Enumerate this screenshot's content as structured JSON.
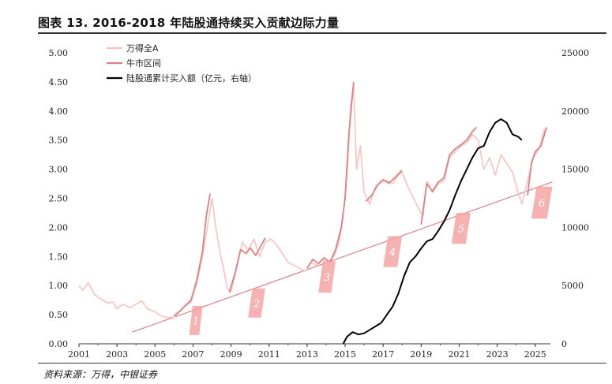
{
  "title": "图表 13. 2016-2018 年陆股通持续买入贡献边际力量",
  "source": "资料来源：万得，中银证券",
  "chart_data": {
    "type": "line",
    "x_range": [
      2001.0,
      2025.8
    ],
    "x_ticks": [
      "2001",
      "2003",
      "2005",
      "2007",
      "2009",
      "2011",
      "2013",
      "2015",
      "2017",
      "2019",
      "2021",
      "2023",
      "2025"
    ],
    "y_left": {
      "range": [
        0,
        5
      ],
      "ticks": [
        "0.00",
        "0.50",
        "1.00",
        "1.50",
        "2.00",
        "2.50",
        "3.00",
        "3.50",
        "4.00",
        "4.50",
        "5.00"
      ]
    },
    "y_right": {
      "range": [
        0,
        25000
      ],
      "ticks": [
        "0",
        "5000",
        "10000",
        "15000",
        "20000",
        "25000"
      ],
      "label": ""
    },
    "legend": [
      {
        "name": "万得全A",
        "color": "#f6c3bd"
      },
      {
        "name": "牛市区间",
        "color": "#e07f84"
      },
      {
        "name": "陆股通累计买入额（亿元，右轴）",
        "color": "#000000"
      }
    ],
    "series": [
      {
        "name": "万得全A",
        "color": "#f6c3bd",
        "axis": "left",
        "points": [
          [
            2001.0,
            1.0
          ],
          [
            2001.2,
            0.92
          ],
          [
            2001.5,
            1.05
          ],
          [
            2001.8,
            0.85
          ],
          [
            2002.1,
            0.78
          ],
          [
            2002.5,
            0.7
          ],
          [
            2002.8,
            0.72
          ],
          [
            2003.0,
            0.6
          ],
          [
            2003.3,
            0.68
          ],
          [
            2003.7,
            0.62
          ],
          [
            2004.0,
            0.68
          ],
          [
            2004.3,
            0.74
          ],
          [
            2004.6,
            0.6
          ],
          [
            2005.0,
            0.55
          ],
          [
            2005.3,
            0.48
          ],
          [
            2005.7,
            0.45
          ],
          [
            2006.0,
            0.46
          ],
          [
            2006.3,
            0.55
          ],
          [
            2006.6,
            0.65
          ],
          [
            2006.9,
            0.72
          ],
          [
            2007.2,
            1.05
          ],
          [
            2007.5,
            1.5
          ],
          [
            2007.8,
            2.1
          ],
          [
            2008.0,
            2.5
          ],
          [
            2008.2,
            2.0
          ],
          [
            2008.4,
            1.6
          ],
          [
            2008.6,
            1.3
          ],
          [
            2008.8,
            0.95
          ],
          [
            2009.0,
            0.9
          ],
          [
            2009.3,
            1.3
          ],
          [
            2009.6,
            1.75
          ],
          [
            2009.9,
            1.6
          ],
          [
            2010.2,
            1.8
          ],
          [
            2010.5,
            1.5
          ],
          [
            2010.8,
            1.75
          ],
          [
            2011.1,
            1.8
          ],
          [
            2011.4,
            1.7
          ],
          [
            2011.7,
            1.55
          ],
          [
            2012.0,
            1.4
          ],
          [
            2012.3,
            1.35
          ],
          [
            2012.6,
            1.3
          ],
          [
            2012.9,
            1.25
          ],
          [
            2013.2,
            1.4
          ],
          [
            2013.5,
            1.35
          ],
          [
            2013.8,
            1.45
          ],
          [
            2014.1,
            1.4
          ],
          [
            2014.4,
            1.5
          ],
          [
            2014.7,
            1.75
          ],
          [
            2014.9,
            2.2
          ],
          [
            2015.1,
            2.9
          ],
          [
            2015.3,
            4.1
          ],
          [
            2015.45,
            4.45
          ],
          [
            2015.6,
            3.0
          ],
          [
            2015.8,
            3.4
          ],
          [
            2016.0,
            2.6
          ],
          [
            2016.3,
            2.4
          ],
          [
            2016.6,
            2.7
          ],
          [
            2016.9,
            2.8
          ],
          [
            2017.2,
            2.8
          ],
          [
            2017.5,
            2.75
          ],
          [
            2017.8,
            2.9
          ],
          [
            2018.0,
            2.95
          ],
          [
            2018.3,
            2.7
          ],
          [
            2018.6,
            2.5
          ],
          [
            2018.9,
            2.3
          ],
          [
            2019.1,
            2.2
          ],
          [
            2019.3,
            2.8
          ],
          [
            2019.6,
            2.6
          ],
          [
            2019.9,
            2.75
          ],
          [
            2020.2,
            2.8
          ],
          [
            2020.5,
            3.2
          ],
          [
            2020.8,
            3.3
          ],
          [
            2021.1,
            3.4
          ],
          [
            2021.4,
            3.45
          ],
          [
            2021.7,
            3.6
          ],
          [
            2022.0,
            3.5
          ],
          [
            2022.3,
            3.0
          ],
          [
            2022.6,
            3.2
          ],
          [
            2022.9,
            2.9
          ],
          [
            2023.2,
            3.25
          ],
          [
            2023.5,
            3.1
          ],
          [
            2023.8,
            2.95
          ],
          [
            2024.1,
            2.6
          ],
          [
            2024.3,
            2.4
          ],
          [
            2024.6,
            2.8
          ],
          [
            2024.9,
            3.2
          ],
          [
            2025.2,
            3.35
          ],
          [
            2025.5,
            3.7
          ]
        ]
      },
      {
        "name": "牛市区间",
        "color": "#e07f84",
        "axis": "left",
        "segments": [
          [
            [
              2006.0,
              0.48
            ],
            [
              2006.3,
              0.56
            ],
            [
              2006.6,
              0.66
            ],
            [
              2006.9,
              0.75
            ],
            [
              2007.2,
              1.1
            ],
            [
              2007.5,
              1.6
            ],
            [
              2007.7,
              2.2
            ],
            [
              2007.9,
              2.58
            ]
          ],
          [
            [
              2008.9,
              0.88
            ],
            [
              2009.2,
              1.2
            ],
            [
              2009.5,
              1.62
            ],
            [
              2009.8,
              1.55
            ],
            [
              2010.0,
              1.65
            ],
            [
              2010.3,
              1.52
            ],
            [
              2010.6,
              1.7
            ],
            [
              2010.8,
              1.82
            ]
          ],
          [
            [
              2013.0,
              1.3
            ],
            [
              2013.3,
              1.45
            ],
            [
              2013.6,
              1.38
            ],
            [
              2013.9,
              1.48
            ],
            [
              2014.2,
              1.4
            ],
            [
              2014.5,
              1.62
            ],
            [
              2014.8,
              2.0
            ],
            [
              2015.0,
              2.5
            ],
            [
              2015.2,
              3.6
            ],
            [
              2015.45,
              4.5
            ]
          ],
          [
            [
              2016.1,
              2.45
            ],
            [
              2016.4,
              2.55
            ],
            [
              2016.7,
              2.72
            ],
            [
              2017.0,
              2.82
            ],
            [
              2017.3,
              2.76
            ],
            [
              2017.6,
              2.85
            ],
            [
              2017.9,
              2.95
            ],
            [
              2018.0,
              2.98
            ]
          ],
          [
            [
              2019.0,
              2.05
            ],
            [
              2019.3,
              2.75
            ],
            [
              2019.6,
              2.62
            ],
            [
              2019.9,
              2.78
            ],
            [
              2020.2,
              2.85
            ],
            [
              2020.5,
              3.25
            ],
            [
              2020.8,
              3.35
            ],
            [
              2021.1,
              3.42
            ],
            [
              2021.4,
              3.5
            ],
            [
              2021.7,
              3.65
            ],
            [
              2021.9,
              3.72
            ]
          ],
          [
            [
              2024.6,
              2.55
            ],
            [
              2024.8,
              3.1
            ],
            [
              2025.0,
              3.3
            ],
            [
              2025.3,
              3.4
            ],
            [
              2025.6,
              3.72
            ]
          ]
        ]
      },
      {
        "name": "陆股通累计买入额（亿元，右轴）",
        "color": "#000000",
        "axis": "right",
        "points": [
          [
            2014.9,
            0
          ],
          [
            2015.1,
            600
          ],
          [
            2015.4,
            1000
          ],
          [
            2015.7,
            800
          ],
          [
            2016.0,
            900
          ],
          [
            2016.3,
            1200
          ],
          [
            2016.6,
            1500
          ],
          [
            2016.9,
            1800
          ],
          [
            2017.2,
            2500
          ],
          [
            2017.5,
            3200
          ],
          [
            2017.8,
            4300
          ],
          [
            2018.1,
            5800
          ],
          [
            2018.4,
            7000
          ],
          [
            2018.7,
            7500
          ],
          [
            2019.0,
            8200
          ],
          [
            2019.3,
            8800
          ],
          [
            2019.6,
            9000
          ],
          [
            2019.9,
            9700
          ],
          [
            2020.2,
            10500
          ],
          [
            2020.5,
            11500
          ],
          [
            2020.8,
            12800
          ],
          [
            2021.1,
            14000
          ],
          [
            2021.4,
            15000
          ],
          [
            2021.7,
            16000
          ],
          [
            2022.0,
            16800
          ],
          [
            2022.3,
            17000
          ],
          [
            2022.6,
            18200
          ],
          [
            2022.9,
            19000
          ],
          [
            2023.2,
            19300
          ],
          [
            2023.5,
            19000
          ],
          [
            2023.8,
            18000
          ],
          [
            2024.1,
            17800
          ],
          [
            2024.3,
            17500
          ]
        ]
      }
    ],
    "trend_line": {
      "color": "#e07f84",
      "from": [
        2003.8,
        0.2
      ],
      "to": [
        2025.9,
        2.78
      ]
    },
    "bull_markets": [
      {
        "label": "1",
        "x_start": 2006.8,
        "x_end": 2007.5,
        "y_low": 0.15,
        "y_high": 0.65
      },
      {
        "label": "2",
        "x_start": 2009.9,
        "x_end": 2010.8,
        "y_low": 0.45,
        "y_high": 0.95
      },
      {
        "label": "3",
        "x_start": 2013.6,
        "x_end": 2014.5,
        "y_low": 0.88,
        "y_high": 1.42
      },
      {
        "label": "4",
        "x_start": 2017.0,
        "x_end": 2018.0,
        "y_low": 1.32,
        "y_high": 1.85
      },
      {
        "label": "5",
        "x_start": 2020.6,
        "x_end": 2021.6,
        "y_low": 1.72,
        "y_high": 2.25
      },
      {
        "label": "6",
        "x_start": 2024.8,
        "x_end": 2025.9,
        "y_low": 2.15,
        "y_high": 2.7
      }
    ]
  }
}
